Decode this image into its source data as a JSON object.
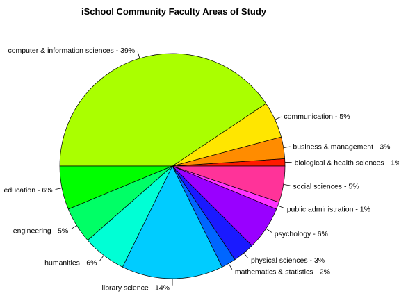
{
  "chart_data": {
    "type": "pie",
    "title": "iSchool Community Faculty Areas of Study",
    "start": "east",
    "direction": "counterclockwise",
    "slices": [
      {
        "label": "biological & health sciences - 1%",
        "value": 1,
        "color": "#FF1A00"
      },
      {
        "label": "business & management - 3%",
        "value": 3,
        "color": "#FF8C00"
      },
      {
        "label": "communication - 5%",
        "value": 5,
        "color": "#FFE600"
      },
      {
        "label": "computer & information sciences - 39%",
        "value": 39,
        "color": "#AAFF00"
      },
      {
        "label": "education - 6%",
        "value": 6,
        "color": "#00FF00"
      },
      {
        "label": "engineering - 5%",
        "value": 5,
        "color": "#00FF66"
      },
      {
        "label": "humanities - 6%",
        "value": 6,
        "color": "#00FFD5"
      },
      {
        "label": "library science - 14%",
        "value": 14,
        "color": "#00CCFF"
      },
      {
        "label": "mathematics & statistics - 2%",
        "value": 2,
        "color": "#0066FF"
      },
      {
        "label": "physical sciences - 3%",
        "value": 3,
        "color": "#1A1AFF"
      },
      {
        "label": "psychology - 6%",
        "value": 6,
        "color": "#9900FF"
      },
      {
        "label": "public administration - 1%",
        "value": 1,
        "color": "#FF33FF"
      },
      {
        "label": "social sciences - 5%",
        "value": 5,
        "color": "#FF3399"
      }
    ]
  }
}
